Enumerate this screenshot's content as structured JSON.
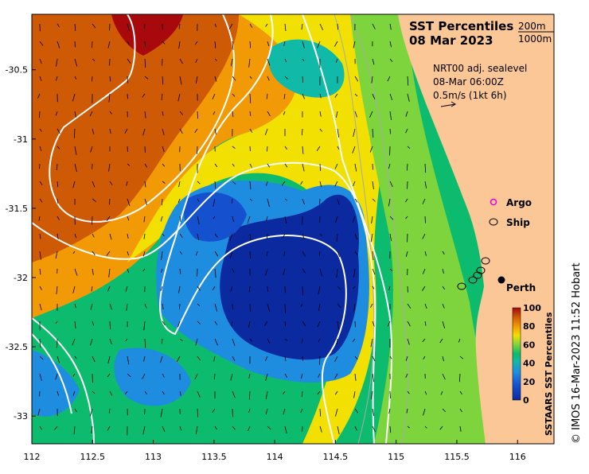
{
  "title": {
    "line1": "SST Percentiles",
    "line2": "08 Mar 2023"
  },
  "isobaths": [
    "200m",
    "1000m"
  ],
  "current_info": [
    "NRT00 adj. sealevel",
    "08-Mar 06:00Z",
    "0.5m/s (1kt 6h)"
  ],
  "legend": {
    "argo": "Argo",
    "ship": "Ship"
  },
  "place": "Perth",
  "colorbar": {
    "title": "SSTAARS SST Percentiles",
    "ticks": [
      "100",
      "80",
      "60",
      "40",
      "20",
      "0"
    ]
  },
  "credit": "© IMOS 16-Mar-2023 11:52 Hobart",
  "axes": {
    "x_ticks": [
      "112",
      "112.5",
      "113",
      "113.5",
      "114",
      "114.5",
      "115",
      "115.5",
      "116"
    ],
    "y_ticks": [
      "-30.5",
      "-31",
      "-31.5",
      "-32",
      "-32.5",
      "-33"
    ],
    "xlim": [
      112,
      116.3
    ],
    "ylim": [
      -33.2,
      -30.1
    ]
  },
  "colors": {
    "land": "#fbc797",
    "p100": "#a8090d",
    "p80": "#cf5a06",
    "p60": "#f2e003",
    "p50": "#7ed43c",
    "p40": "#0dbb6e",
    "p20": "#1e8de0",
    "p0": "#0b2aa0"
  }
}
